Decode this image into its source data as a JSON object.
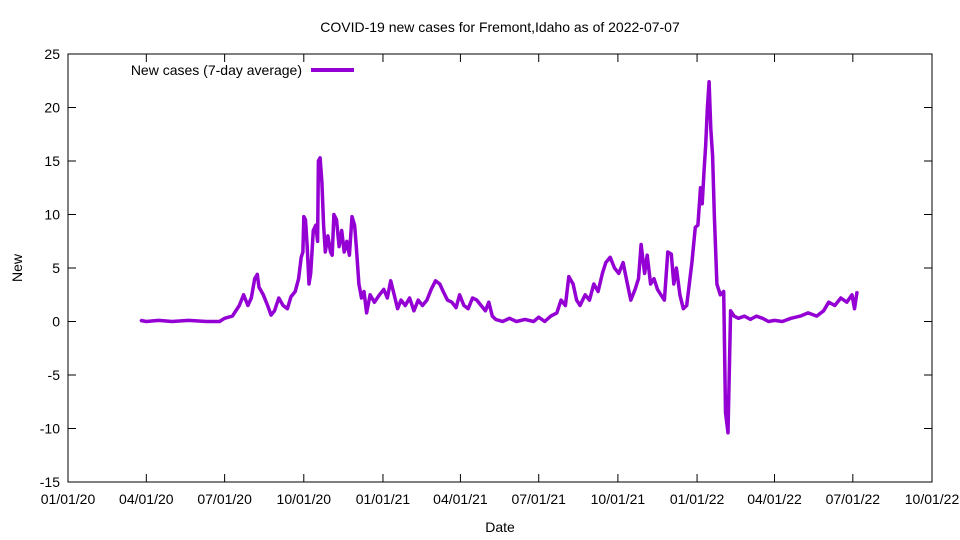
{
  "chart_data": {
    "type": "line",
    "title": "COVID-19 new cases for Fremont,Idaho as of 2022-07-07",
    "xlabel": "Date",
    "ylabel": "New",
    "ylim": [
      -15,
      25
    ],
    "yticks": [
      -15,
      -10,
      -5,
      0,
      5,
      10,
      15,
      20,
      25
    ],
    "xlim": [
      "2020-01-01",
      "2022-10-01"
    ],
    "xticks": [
      {
        "date": "2020-01-01",
        "label": "01/01/20"
      },
      {
        "date": "2020-04-01",
        "label": "04/01/20"
      },
      {
        "date": "2020-07-01",
        "label": "07/01/20"
      },
      {
        "date": "2020-10-01",
        "label": "10/01/20"
      },
      {
        "date": "2021-01-01",
        "label": "01/01/21"
      },
      {
        "date": "2021-04-01",
        "label": "04/01/21"
      },
      {
        "date": "2021-07-01",
        "label": "07/01/21"
      },
      {
        "date": "2021-10-01",
        "label": "10/01/21"
      },
      {
        "date": "2022-01-01",
        "label": "01/01/22"
      },
      {
        "date": "2022-04-01",
        "label": "04/01/22"
      },
      {
        "date": "2022-07-01",
        "label": "07/01/22"
      },
      {
        "date": "2022-10-01",
        "label": "10/01/22"
      }
    ],
    "grid": false,
    "legend_position": "top-left",
    "series": [
      {
        "name": "New cases (7-day average)",
        "color": "#9400d3",
        "points": [
          [
            "2020-03-25",
            0.1
          ],
          [
            "2020-04-01",
            0.0
          ],
          [
            "2020-04-15",
            0.1
          ],
          [
            "2020-05-01",
            0.0
          ],
          [
            "2020-05-20",
            0.1
          ],
          [
            "2020-06-10",
            0.0
          ],
          [
            "2020-06-25",
            0.0
          ],
          [
            "2020-07-01",
            0.3
          ],
          [
            "2020-07-10",
            0.5
          ],
          [
            "2020-07-18",
            1.5
          ],
          [
            "2020-07-23",
            2.5
          ],
          [
            "2020-07-28",
            1.5
          ],
          [
            "2020-08-01",
            2.2
          ],
          [
            "2020-08-05",
            4.0
          ],
          [
            "2020-08-08",
            4.4
          ],
          [
            "2020-08-10",
            3.2
          ],
          [
            "2020-08-15",
            2.5
          ],
          [
            "2020-08-20",
            1.5
          ],
          [
            "2020-08-24",
            0.6
          ],
          [
            "2020-08-28",
            1.0
          ],
          [
            "2020-09-02",
            2.2
          ],
          [
            "2020-09-07",
            1.5
          ],
          [
            "2020-09-12",
            1.2
          ],
          [
            "2020-09-16",
            2.3
          ],
          [
            "2020-09-21",
            2.8
          ],
          [
            "2020-09-25",
            4.0
          ],
          [
            "2020-09-28",
            6.0
          ],
          [
            "2020-09-30",
            6.5
          ],
          [
            "2020-10-01",
            9.8
          ],
          [
            "2020-10-03",
            9.5
          ],
          [
            "2020-10-05",
            7.0
          ],
          [
            "2020-10-07",
            3.5
          ],
          [
            "2020-10-09",
            4.5
          ],
          [
            "2020-10-12",
            8.5
          ],
          [
            "2020-10-15",
            9.0
          ],
          [
            "2020-10-17",
            7.5
          ],
          [
            "2020-10-18",
            15.0
          ],
          [
            "2020-10-20",
            15.3
          ],
          [
            "2020-10-22",
            13.0
          ],
          [
            "2020-10-24",
            9.0
          ],
          [
            "2020-10-26",
            6.5
          ],
          [
            "2020-10-29",
            8.0
          ],
          [
            "2020-11-01",
            6.5
          ],
          [
            "2020-11-03",
            6.2
          ],
          [
            "2020-11-05",
            10.0
          ],
          [
            "2020-11-08",
            9.5
          ],
          [
            "2020-11-11",
            7.0
          ],
          [
            "2020-11-14",
            8.5
          ],
          [
            "2020-11-17",
            6.5
          ],
          [
            "2020-11-20",
            7.5
          ],
          [
            "2020-11-23",
            6.2
          ],
          [
            "2020-11-26",
            9.8
          ],
          [
            "2020-11-29",
            9.0
          ],
          [
            "2020-12-01",
            7.0
          ],
          [
            "2020-12-04",
            3.5
          ],
          [
            "2020-12-07",
            2.2
          ],
          [
            "2020-12-10",
            2.8
          ],
          [
            "2020-12-13",
            0.8
          ],
          [
            "2020-12-17",
            2.5
          ],
          [
            "2020-12-22",
            1.8
          ],
          [
            "2020-12-28",
            2.5
          ],
          [
            "2021-01-02",
            3.0
          ],
          [
            "2021-01-06",
            2.2
          ],
          [
            "2021-01-10",
            3.8
          ],
          [
            "2021-01-14",
            2.5
          ],
          [
            "2021-01-18",
            1.2
          ],
          [
            "2021-01-22",
            2.0
          ],
          [
            "2021-01-27",
            1.5
          ],
          [
            "2021-02-01",
            2.2
          ],
          [
            "2021-02-06",
            1.0
          ],
          [
            "2021-02-11",
            2.0
          ],
          [
            "2021-02-16",
            1.5
          ],
          [
            "2021-02-21",
            2.0
          ],
          [
            "2021-02-26",
            3.0
          ],
          [
            "2021-03-03",
            3.8
          ],
          [
            "2021-03-08",
            3.5
          ],
          [
            "2021-03-12",
            2.8
          ],
          [
            "2021-03-17",
            2.0
          ],
          [
            "2021-03-22",
            1.8
          ],
          [
            "2021-03-27",
            1.3
          ],
          [
            "2021-03-31",
            2.5
          ],
          [
            "2021-04-05",
            1.5
          ],
          [
            "2021-04-10",
            1.2
          ],
          [
            "2021-04-15",
            2.2
          ],
          [
            "2021-04-20",
            2.0
          ],
          [
            "2021-04-25",
            1.5
          ],
          [
            "2021-04-30",
            1.0
          ],
          [
            "2021-05-04",
            1.8
          ],
          [
            "2021-05-08",
            0.5
          ],
          [
            "2021-05-12",
            0.2
          ],
          [
            "2021-05-20",
            0.0
          ],
          [
            "2021-05-28",
            0.3
          ],
          [
            "2021-06-05",
            0.0
          ],
          [
            "2021-06-15",
            0.2
          ],
          [
            "2021-06-25",
            0.0
          ],
          [
            "2021-07-01",
            0.4
          ],
          [
            "2021-07-08",
            0.0
          ],
          [
            "2021-07-15",
            0.5
          ],
          [
            "2021-07-22",
            0.8
          ],
          [
            "2021-07-27",
            2.0
          ],
          [
            "2021-08-01",
            1.5
          ],
          [
            "2021-08-05",
            4.2
          ],
          [
            "2021-08-10",
            3.5
          ],
          [
            "2021-08-14",
            2.0
          ],
          [
            "2021-08-18",
            1.5
          ],
          [
            "2021-08-24",
            2.5
          ],
          [
            "2021-08-29",
            2.0
          ],
          [
            "2021-09-03",
            3.5
          ],
          [
            "2021-09-08",
            2.8
          ],
          [
            "2021-09-13",
            4.5
          ],
          [
            "2021-09-17",
            5.5
          ],
          [
            "2021-09-22",
            6.0
          ],
          [
            "2021-09-27",
            5.0
          ],
          [
            "2021-10-02",
            4.5
          ],
          [
            "2021-10-07",
            5.5
          ],
          [
            "2021-10-12",
            3.5
          ],
          [
            "2021-10-16",
            2.0
          ],
          [
            "2021-10-21",
            3.0
          ],
          [
            "2021-10-25",
            4.0
          ],
          [
            "2021-10-28",
            7.2
          ],
          [
            "2021-11-01",
            4.5
          ],
          [
            "2021-11-04",
            6.2
          ],
          [
            "2021-11-08",
            3.5
          ],
          [
            "2021-11-12",
            4.0
          ],
          [
            "2021-11-16",
            3.0
          ],
          [
            "2021-11-20",
            2.5
          ],
          [
            "2021-11-24",
            2.0
          ],
          [
            "2021-11-28",
            6.5
          ],
          [
            "2021-12-02",
            6.3
          ],
          [
            "2021-12-05",
            3.5
          ],
          [
            "2021-12-08",
            5.0
          ],
          [
            "2021-12-12",
            2.5
          ],
          [
            "2021-12-16",
            1.2
          ],
          [
            "2021-12-20",
            1.5
          ],
          [
            "2021-12-23",
            3.5
          ],
          [
            "2021-12-26",
            5.5
          ],
          [
            "2021-12-30",
            8.8
          ],
          [
            "2022-01-02",
            9.0
          ],
          [
            "2022-01-05",
            12.5
          ],
          [
            "2022-01-07",
            11.0
          ],
          [
            "2022-01-09",
            14.0
          ],
          [
            "2022-01-11",
            16.5
          ],
          [
            "2022-01-13",
            20.0
          ],
          [
            "2022-01-15",
            22.4
          ],
          [
            "2022-01-17",
            18.0
          ],
          [
            "2022-01-19",
            15.5
          ],
          [
            "2022-01-21",
            10.0
          ],
          [
            "2022-01-24",
            3.5
          ],
          [
            "2022-01-28",
            2.5
          ],
          [
            "2022-02-01",
            2.8
          ],
          [
            "2022-02-03",
            -8.5
          ],
          [
            "2022-02-06",
            -10.4
          ],
          [
            "2022-02-09",
            1.0
          ],
          [
            "2022-02-13",
            0.5
          ],
          [
            "2022-02-18",
            0.3
          ],
          [
            "2022-02-25",
            0.5
          ],
          [
            "2022-03-04",
            0.2
          ],
          [
            "2022-03-11",
            0.5
          ],
          [
            "2022-03-18",
            0.3
          ],
          [
            "2022-03-25",
            0.0
          ],
          [
            "2022-04-01",
            0.1
          ],
          [
            "2022-04-10",
            0.0
          ],
          [
            "2022-04-20",
            0.3
          ],
          [
            "2022-05-01",
            0.5
          ],
          [
            "2022-05-10",
            0.8
          ],
          [
            "2022-05-20",
            0.5
          ],
          [
            "2022-05-28",
            1.0
          ],
          [
            "2022-06-03",
            1.8
          ],
          [
            "2022-06-10",
            1.5
          ],
          [
            "2022-06-17",
            2.2
          ],
          [
            "2022-06-24",
            1.8
          ],
          [
            "2022-06-30",
            2.5
          ],
          [
            "2022-07-03",
            1.2
          ],
          [
            "2022-07-06",
            2.8
          ]
        ]
      }
    ]
  }
}
